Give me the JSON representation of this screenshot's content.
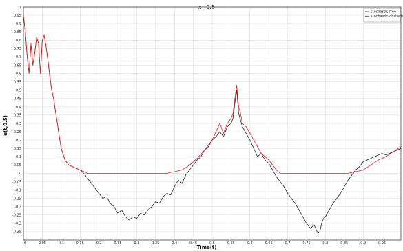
{
  "chart_data": {
    "type": "line",
    "title": "x=0.5",
    "xlabel": "Time(t)",
    "ylabel": "u(t,0.5)",
    "xlim": [
      0,
      1
    ],
    "ylim": [
      -0.4,
      1
    ],
    "grid": true,
    "legend_position": "top-right",
    "xticks": [
      "0",
      "0.05",
      "0.1",
      "0.15",
      "0.2",
      "0.25",
      "0.3",
      "0.35",
      "0.4",
      "0.45",
      "0.5",
      "0.55",
      "0.6",
      "0.65",
      "0.7",
      "0.75",
      "0.8",
      "0.85",
      "0.9",
      "0.95"
    ],
    "yticks": [
      "-0.35",
      "-0.3",
      "-0.25",
      "-0.2",
      "-0.15",
      "-0.1",
      "-0.05",
      "0",
      "0.05",
      "0.1",
      "0.15",
      "0.2",
      "0.25",
      "0.3",
      "0.35",
      "0.4",
      "0.45",
      "0.5",
      "0.55",
      "0.6",
      "0.65",
      "0.7",
      "0.75",
      "0.8",
      "0.85",
      "0.9",
      "0.95",
      "1"
    ],
    "series": [
      {
        "name": "stochastic-free",
        "color": "#222222",
        "x": [
          0,
          0.005,
          0.01,
          0.015,
          0.02,
          0.025,
          0.03,
          0.035,
          0.04,
          0.045,
          0.05,
          0.055,
          0.06,
          0.065,
          0.07,
          0.075,
          0.08,
          0.085,
          0.09,
          0.095,
          0.1,
          0.11,
          0.12,
          0.13,
          0.14,
          0.15,
          0.16,
          0.17,
          0.18,
          0.19,
          0.2,
          0.21,
          0.22,
          0.23,
          0.24,
          0.25,
          0.26,
          0.27,
          0.28,
          0.29,
          0.3,
          0.31,
          0.32,
          0.33,
          0.34,
          0.35,
          0.36,
          0.37,
          0.38,
          0.39,
          0.4,
          0.41,
          0.42,
          0.43,
          0.44,
          0.45,
          0.46,
          0.47,
          0.48,
          0.49,
          0.5,
          0.51,
          0.52,
          0.53,
          0.54,
          0.55,
          0.555,
          0.56,
          0.565,
          0.57,
          0.575,
          0.58,
          0.59,
          0.6,
          0.61,
          0.62,
          0.63,
          0.64,
          0.65,
          0.66,
          0.67,
          0.68,
          0.69,
          0.7,
          0.71,
          0.72,
          0.73,
          0.74,
          0.75,
          0.76,
          0.77,
          0.78,
          0.785,
          0.79,
          0.795,
          0.8,
          0.81,
          0.82,
          0.83,
          0.84,
          0.85,
          0.86,
          0.87,
          0.88,
          0.89,
          0.9,
          0.91,
          0.92,
          0.93,
          0.94,
          0.95,
          0.96,
          0.97,
          0.98,
          0.99,
          1
        ],
        "y": [
          0.95,
          0.85,
          0.7,
          0.6,
          0.78,
          0.65,
          0.72,
          0.82,
          0.78,
          0.6,
          0.8,
          0.83,
          0.76,
          0.68,
          0.58,
          0.5,
          0.45,
          0.37,
          0.3,
          0.22,
          0.15,
          0.08,
          0.05,
          0.04,
          0.03,
          0.02,
          0.0,
          -0.03,
          -0.06,
          -0.09,
          -0.12,
          -0.15,
          -0.14,
          -0.18,
          -0.2,
          -0.24,
          -0.22,
          -0.26,
          -0.28,
          -0.26,
          -0.27,
          -0.24,
          -0.25,
          -0.22,
          -0.2,
          -0.17,
          -0.18,
          -0.14,
          -0.12,
          -0.13,
          -0.08,
          -0.04,
          -0.06,
          -0.01,
          0.02,
          0.05,
          0.08,
          0.1,
          0.14,
          0.16,
          0.2,
          0.22,
          0.25,
          0.22,
          0.28,
          0.3,
          0.33,
          0.42,
          0.5,
          0.36,
          0.32,
          0.28,
          0.24,
          0.2,
          0.15,
          0.1,
          0.12,
          0.08,
          0.06,
          0.02,
          -0.02,
          -0.05,
          -0.08,
          -0.12,
          -0.15,
          -0.18,
          -0.22,
          -0.26,
          -0.3,
          -0.33,
          -0.31,
          -0.36,
          -0.35,
          -0.3,
          -0.27,
          -0.26,
          -0.22,
          -0.18,
          -0.15,
          -0.12,
          -0.08,
          -0.04,
          -0.01,
          0.02,
          0.04,
          0.07,
          0.08,
          0.09,
          0.1,
          0.11,
          0.12,
          0.11,
          0.12,
          0.13,
          0.14,
          0.15
        ]
      },
      {
        "name": "stochastic-obstacle",
        "color": "#e02020",
        "x": [
          0,
          0.005,
          0.01,
          0.015,
          0.02,
          0.025,
          0.03,
          0.035,
          0.04,
          0.045,
          0.05,
          0.055,
          0.06,
          0.065,
          0.07,
          0.075,
          0.08,
          0.085,
          0.09,
          0.095,
          0.1,
          0.11,
          0.12,
          0.13,
          0.14,
          0.15,
          0.16,
          0.17,
          0.18,
          0.2,
          0.25,
          0.3,
          0.35,
          0.38,
          0.4,
          0.42,
          0.44,
          0.46,
          0.48,
          0.5,
          0.51,
          0.52,
          0.53,
          0.54,
          0.55,
          0.555,
          0.56,
          0.565,
          0.57,
          0.575,
          0.58,
          0.59,
          0.6,
          0.61,
          0.62,
          0.63,
          0.64,
          0.65,
          0.66,
          0.67,
          0.68,
          0.7,
          0.75,
          0.8,
          0.84,
          0.86,
          0.88,
          0.9,
          0.92,
          0.94,
          0.96,
          0.98,
          1
        ],
        "y": [
          0.95,
          0.85,
          0.7,
          0.6,
          0.78,
          0.65,
          0.72,
          0.82,
          0.78,
          0.6,
          0.8,
          0.83,
          0.76,
          0.68,
          0.58,
          0.5,
          0.45,
          0.37,
          0.3,
          0.22,
          0.15,
          0.08,
          0.05,
          0.04,
          0.03,
          0.02,
          0.01,
          0.0,
          0.0,
          0.0,
          0.0,
          0.0,
          0.0,
          0.0,
          0.01,
          0.02,
          0.05,
          0.09,
          0.14,
          0.2,
          0.25,
          0.3,
          0.24,
          0.3,
          0.33,
          0.36,
          0.45,
          0.53,
          0.4,
          0.36,
          0.3,
          0.28,
          0.24,
          0.2,
          0.16,
          0.12,
          0.1,
          0.08,
          0.05,
          0.02,
          0.0,
          0.0,
          0.0,
          0.0,
          0.0,
          0.0,
          0.01,
          0.02,
          0.05,
          0.08,
          0.1,
          0.13,
          0.16
        ]
      }
    ]
  }
}
